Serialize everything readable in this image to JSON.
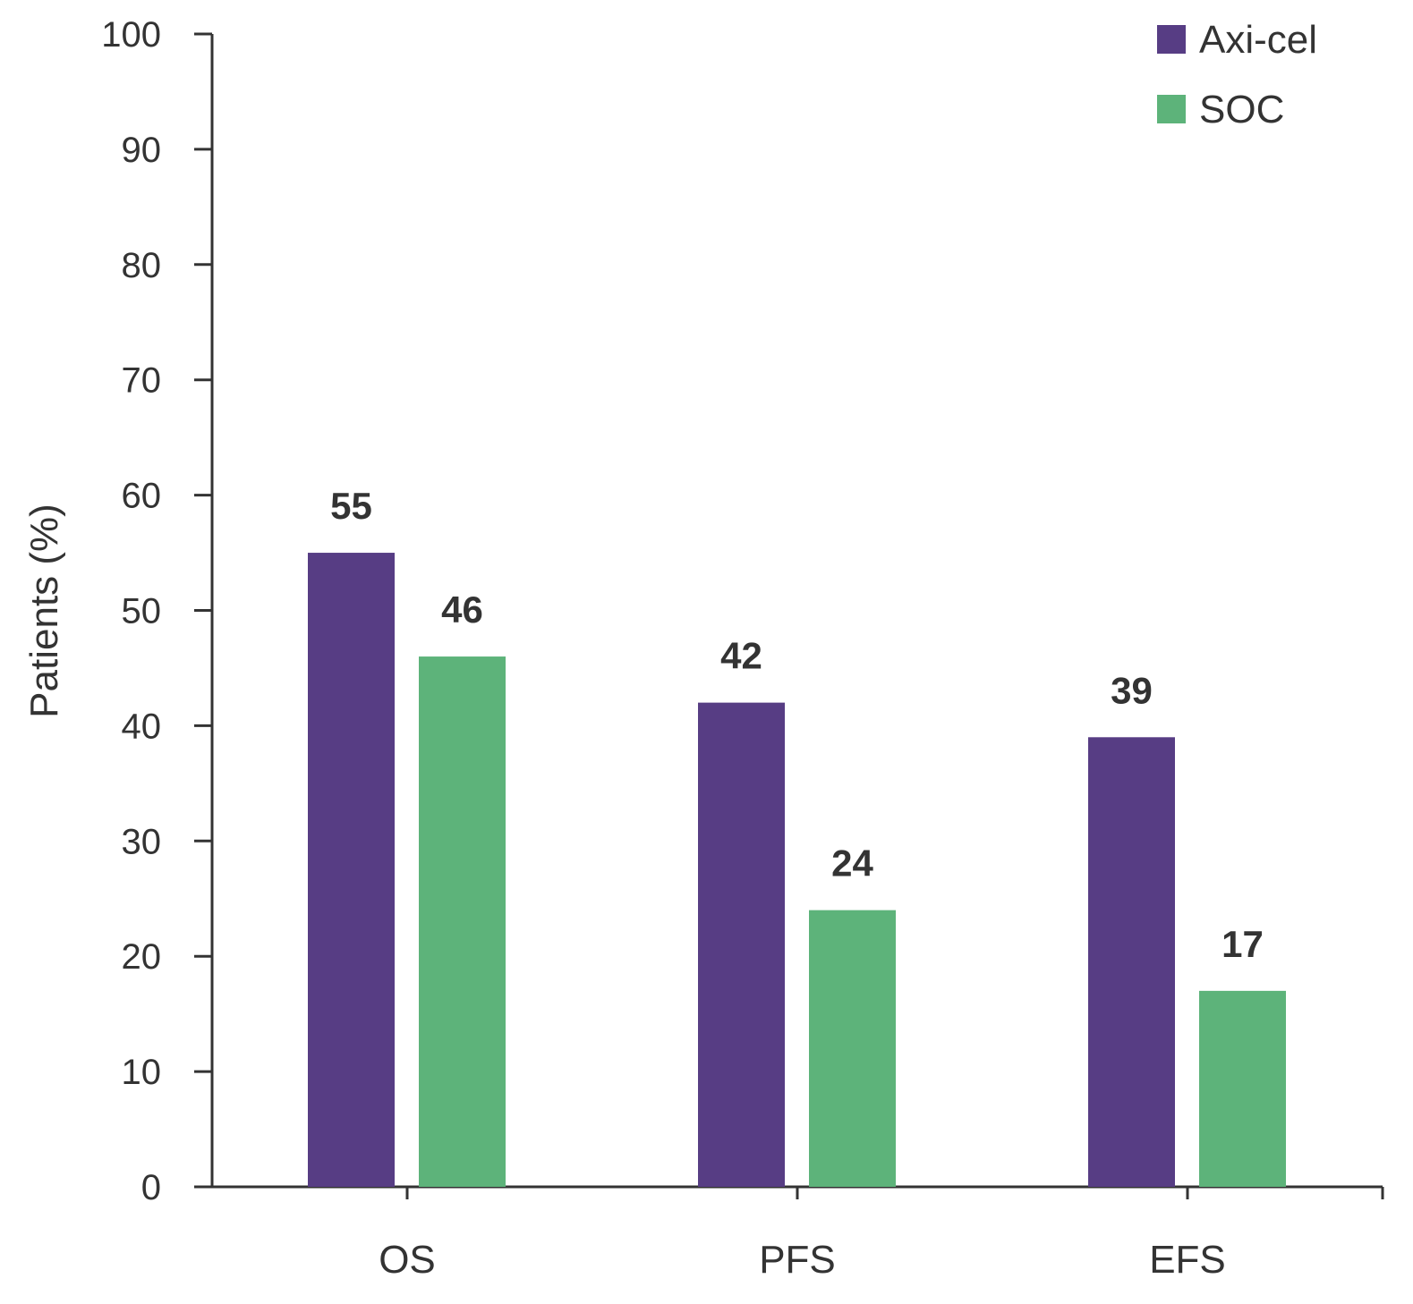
{
  "chart_data": {
    "type": "bar",
    "title": "",
    "xlabel": "",
    "ylabel": "Patients (%)",
    "ylim": [
      0,
      100
    ],
    "yticks": [
      0,
      10,
      20,
      30,
      40,
      50,
      60,
      70,
      80,
      90,
      100
    ],
    "categories": [
      "OS",
      "PFS",
      "EFS"
    ],
    "series": [
      {
        "name": "Axi-cel",
        "color": "#573d84",
        "values": [
          55,
          42,
          39
        ]
      },
      {
        "name": "SOC",
        "color": "#5db37a",
        "values": [
          46,
          24,
          17
        ]
      }
    ],
    "legend": "top-right",
    "grid": false
  }
}
